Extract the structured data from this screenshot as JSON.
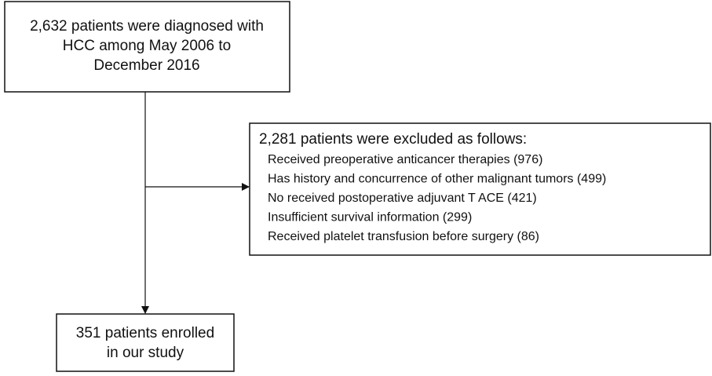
{
  "nodes": [
    {
      "lines": [
        "2,632 patients were diagnosed with",
        "HCC among May 2006 to",
        "December 2016"
      ]
    },
    {
      "title": "2,281 patients were excluded as follows:",
      "items": [
        "Received preoperative anticancer therapies (976)",
        "Has history and concurrence of other malignant tumors (499)",
        "No received postoperative adjuvant T ACE (421)",
        "Insufficient survival information (299)",
        "Received platelet transfusion before surgery (86)"
      ]
    },
    {
      "lines": [
        "351 patients enrolled",
        "in our study"
      ]
    }
  ]
}
